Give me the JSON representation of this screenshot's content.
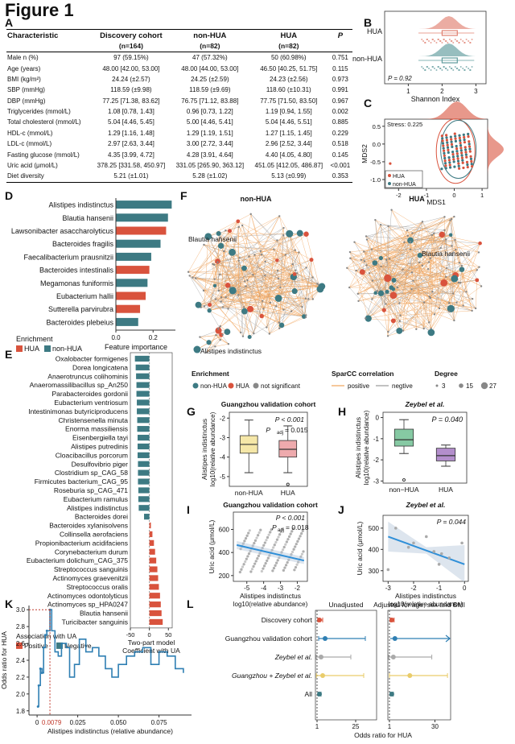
{
  "figure_title": "Figure 1",
  "panel_labels": [
    "A",
    "B",
    "C",
    "D",
    "E",
    "F",
    "G",
    "H",
    "I",
    "J",
    "K",
    "L"
  ],
  "table_a": {
    "headers": [
      "Characteristic",
      "Discovery cohort",
      "non-HUA",
      "HUA",
      "P"
    ],
    "subheaders": [
      "",
      "(n=164)",
      "(n=82)",
      "(n=82)",
      ""
    ],
    "rows": [
      [
        "Male n (%)",
        "97 (59.15%)",
        "47 (57.32%)",
        "50 (60.98%)",
        "0.751"
      ],
      [
        "Age (years)",
        "48.00 [42.00, 53.00]",
        "48.00 [44.00, 53.00]",
        "46.50 [40.25, 51.75]",
        "0.115"
      ],
      [
        "BMI (kg/m²)",
        "24.24 (±2.57)",
        "24.25 (±2.59)",
        "24.23 (±2.56)",
        "0.973"
      ],
      [
        "SBP (mmHg)",
        "118.59 (±9.98)",
        "118.59 (±9.69)",
        "118.60 (±10.31)",
        "0.991"
      ],
      [
        "DBP (mmHg)",
        "77.25 [71.38, 83.62]",
        "76.75 [71.12, 83.88]",
        "77.75 [71.50, 83.50]",
        "0.967"
      ],
      [
        "Triglycerides (mmol/L)",
        "1.08 [0.78, 1.43]",
        "0.96 [0.73, 1.22]",
        "1.19 [0.94, 1.55]",
        "0.002"
      ],
      [
        "Total cholesterol (mmol/L)",
        "5.04 [4.46, 5.45]",
        "5.00 [4.46, 5.41]",
        "5.04 [4.46, 5.51]",
        "0.885"
      ],
      [
        "HDL-c (mmol/L)",
        "1.29 [1.16, 1.48]",
        "1.29 [1.19, 1.51]",
        "1.27 [1.15, 1.45]",
        "0.229"
      ],
      [
        "LDL-c (mmol/L)",
        "2.97 [2.63, 3.44]",
        "3.00 [2.72, 3.44]",
        "2.96 [2.52, 3.44]",
        "0.518"
      ],
      [
        "Fasting glucose (mmol/L)",
        "4.35 [3.99, 4.72]",
        "4.28 [3.91, 4.64]",
        "4.40 [4.05, 4.80]",
        "0.145"
      ],
      [
        "Uric acid (μmol/L)",
        "378.25 [331.58, 450.97]",
        "331.05 [265.90, 363.12]",
        "451.05 [412.05, 486.87]",
        "<0.001"
      ],
      [
        "Diet diversity",
        "5.21 (±1.01)",
        "5.28 (±1.02)",
        "5.13 (±0.99)",
        "0.353"
      ]
    ]
  },
  "panel_b": {
    "groups": [
      "HUA",
      "non-HUA"
    ],
    "xlabel": "Shannon Index",
    "xticks": [
      "1",
      "2",
      "3"
    ],
    "p_text": "P = 0.92"
  },
  "panel_c": {
    "stress": "Stress: 0.225",
    "xlabel": "MDS1",
    "ylabel": "MDS2",
    "xticks": [
      "-2",
      "-1",
      "0",
      "1"
    ],
    "yticks": [
      "0.5",
      "0.0",
      "-0.5",
      "-1.0"
    ],
    "legend": [
      "HUA",
      "non-HUA"
    ]
  },
  "panel_d": {
    "xlabel": "Feature importance",
    "xticks": [
      "0.0",
      "0.2"
    ],
    "legend_title": "Enrichment",
    "legend": [
      "HUA",
      "non-HUA"
    ]
  },
  "panel_e": {
    "xlabel1": "Two-part model",
    "xlabel2": "Coefficient with UA",
    "xticks": [
      "-50",
      "0",
      "50"
    ],
    "legend_title": "Association with UA",
    "legend": [
      "Positive",
      "Negative"
    ]
  },
  "panel_f": {
    "left_title": "non-HUA",
    "right_title": "HUA",
    "labels": {
      "left_top": "Blautia hansenii",
      "left_bottom": "Alistipes indistinctus",
      "right": "Blautia hansenii"
    },
    "legend": {
      "enrichment_title": "Enrichment",
      "enrichment": [
        "non-HUA",
        "HUA",
        "not significant"
      ],
      "sparcc_title": "SparCC correlation",
      "sparcc": [
        "positive",
        "negtive"
      ],
      "degree_title": "Degree",
      "degree": [
        "3",
        "15",
        "27"
      ]
    }
  },
  "panel_g": {
    "title": "Guangzhou validation cohort",
    "p_text": "P < 0.001",
    "padj_text": "= 0.015",
    "groups": [
      "non-HUA",
      "HUA"
    ],
    "yticks": [
      "-2",
      "-3",
      "-4",
      "-5"
    ],
    "ylabel1": "Alistipes indistinctus",
    "ylabel2": "log10(relative abundance)"
  },
  "panel_h": {
    "title": "Zeybel et al.",
    "p_text": "P = 0.040",
    "groups": [
      "non−HUA",
      "HUA"
    ],
    "yticks": [
      "0",
      "-1",
      "-2",
      "-3"
    ],
    "ylabel1": "Alistipes indistinctus",
    "ylabel2": "log10(relative abundance)"
  },
  "panel_i": {
    "title": "Guangzhou validation cohort",
    "p_text": "P < 0.001",
    "padj_text": "= 0.018",
    "xticks": [
      "-5",
      "-4",
      "-3",
      "-2"
    ],
    "yticks": [
      "200",
      "400",
      "600"
    ],
    "ylabel": "Uric acid (μmol/L)",
    "xlabel1": "Alistipes indistinctus",
    "xlabel2": "log10(relative abundance)"
  },
  "panel_j": {
    "title": "Zeybel et al.",
    "p_text": "P = 0.044",
    "xticks": [
      "-3",
      "-2",
      "-1",
      "0"
    ],
    "yticks": [
      "300",
      "400",
      "500"
    ],
    "ylabel": "Uric acid (μmol/L)",
    "xlabel1": "Alistipes indistinctus",
    "xlabel2": "log10(relative abundance)"
  },
  "panel_k": {
    "ylabel": "Odds ratio for HUA",
    "xlabel": "Alistipes indistinctus (relative abundance)",
    "xticks": [
      "0",
      "0.025",
      "0.050",
      "0.075"
    ],
    "yticks": [
      "3.0",
      "2.8",
      "2.6",
      "2.4",
      "2.2",
      "2.0",
      "1.8"
    ],
    "threshold": "0.0079"
  },
  "panel_l": {
    "title_left": "Unadjusted",
    "title_right": "Adjusted for age, sex and BMI",
    "xlabel": "Odds ratio for HUA",
    "xticks_left": [
      "1",
      "25"
    ],
    "xticks_right": [
      "1",
      "30"
    ]
  },
  "chart_data": [
    {
      "panel": "D",
      "type": "bar",
      "title": "",
      "xlabel": "Feature importance",
      "categories": [
        "Alistipes indistinctus",
        "Blautia hansenii",
        "Lawsonibacter asaccharolyticus",
        "Bacteroides fragilis",
        "Faecalibacterium prausnitzii",
        "Bacteroides intestinalis",
        "Megamonas funiformis",
        "Eubacterium hallii",
        "Sutterella parvirubra",
        "Bacteroides plebeius"
      ],
      "values": [
        0.3,
        0.28,
        0.27,
        0.24,
        0.19,
        0.18,
        0.17,
        0.16,
        0.13,
        0.12
      ],
      "enrichment": [
        "non-HUA",
        "non-HUA",
        "HUA",
        "non-HUA",
        "non-HUA",
        "HUA",
        "non-HUA",
        "HUA",
        "HUA",
        "non-HUA"
      ],
      "xlim": [
        0,
        0.32
      ],
      "colors": {
        "HUA": "#d9533d",
        "non-HUA": "#3d7a83"
      }
    },
    {
      "panel": "E",
      "type": "bar",
      "xlabel": "Two-part model Coefficient with UA",
      "categories": [
        "Oxalobacter formigenes",
        "Dorea longicatena",
        "Anaerotruncus colihominis",
        "Anaeromassilibacillus sp_An250",
        "Parabacteroides gordonii",
        "Eubacterium ventriosum",
        "Intestinimonas butyriciproducens",
        "Christensenella minuta",
        "Enorma massiliensis",
        "Eisenbergiella tayi",
        "Alistipes putredinis",
        "Cloacibacillus porcorum",
        "Desulfovibrio piger",
        "Clostridium sp_CAG_58",
        "Firmicutes bacterium_CAG_95",
        "Roseburia sp_CAG_471",
        "Eubacterium ramulus",
        "Alistipes indistinctus",
        "Bacteroides dorei",
        "Bacteroides xylanisolvens",
        "Collinsella aerofaciens",
        "Propionibacterium acidifaciens",
        "Corynebacterium durum",
        "Eubacterium dolichum_CAG_375",
        "Streptococcus sanguinis",
        "Actinomyces graevenitzii",
        "Streptococcus oralis",
        "Actinomyces odontolyticus",
        "Actinomyces sp_HPA0247",
        "Blautia hansenii",
        "Turicibacter sanguinis"
      ],
      "values": [
        -38,
        -36,
        -35,
        -34,
        -34,
        -33,
        -33,
        -32,
        -32,
        -31,
        -31,
        -31,
        -30,
        -30,
        -30,
        -29,
        -29,
        -28,
        -14,
        4,
        8,
        12,
        15,
        18,
        21,
        23,
        25,
        28,
        30,
        32,
        35
      ],
      "xlim": [
        -50,
        60
      ]
    },
    {
      "panel": "G",
      "type": "box",
      "title": "Guangzhou validation cohort",
      "categories": [
        "non-HUA",
        "HUA"
      ],
      "series": [
        {
          "name": "non-HUA",
          "min": -4.8,
          "q1": -3.8,
          "median": -3.35,
          "q3": -2.9,
          "max": -2.1
        },
        {
          "name": "HUA",
          "min": -4.8,
          "q1": -4.0,
          "median": -3.6,
          "q3": -3.15,
          "max": -2.4
        }
      ],
      "outliers": {
        "HUA": [
          -5.4
        ]
      },
      "ylim": [
        -5.5,
        -1.7
      ]
    },
    {
      "panel": "H",
      "type": "box",
      "title": "Zeybel et al.",
      "categories": [
        "non−HUA",
        "HUA"
      ],
      "series": [
        {
          "name": "non−HUA",
          "min": -1.7,
          "q1": -1.35,
          "median": -1.05,
          "q3": -0.55,
          "max": -0.1
        },
        {
          "name": "HUA",
          "min": -2.3,
          "q1": -2.05,
          "median": -1.8,
          "q3": -1.45,
          "max": -1.3
        }
      ],
      "outliers": {
        "non−HUA": [
          -2.95
        ]
      },
      "ylim": [
        -3.1,
        0.25
      ]
    },
    {
      "panel": "I",
      "type": "scatter",
      "title": "Guangzhou validation cohort",
      "xlim": [
        -5.8,
        -1.4
      ],
      "ylim": [
        150,
        750
      ],
      "fit": {
        "x": [
          -5.6,
          -1.6
        ],
        "y": [
          465,
          330
        ]
      }
    },
    {
      "panel": "J",
      "type": "scatter",
      "title": "Zeybel et al.",
      "xlim": [
        -3.2,
        0.15
      ],
      "x": [
        -3.0,
        -2.7,
        -2.2,
        -2.0,
        -1.5,
        -1.2,
        -1.0,
        -0.9,
        -0.6,
        -0.1
      ],
      "y": [
        305,
        500,
        410,
        430,
        460,
        390,
        330,
        380,
        360,
        430
      ],
      "fit": {
        "x": [
          -3.0,
          0.0
        ],
        "y": [
          460,
          330
        ]
      },
      "ylim": [
        250,
        560
      ]
    },
    {
      "panel": "K",
      "type": "line",
      "xlabel": "Alistipes indistinctus (relative abundance)",
      "ylabel": "Odds ratio for HUA",
      "x": [
        0.0005,
        0.001,
        0.002,
        0.003,
        0.004,
        0.005,
        0.006,
        0.0079,
        0.009,
        0.011,
        0.013,
        0.015,
        0.018,
        0.02,
        0.023,
        0.026,
        0.03,
        0.034,
        0.038,
        0.042,
        0.046,
        0.05,
        0.055,
        0.06,
        0.065,
        0.07,
        0.075,
        0.08,
        0.085,
        0.09
      ],
      "y": [
        1.85,
        2.1,
        2.3,
        2.25,
        2.55,
        2.7,
        2.75,
        3.0,
        2.75,
        2.5,
        2.45,
        2.6,
        2.55,
        2.2,
        2.35,
        2.65,
        2.5,
        2.55,
        2.45,
        2.3,
        2.2,
        2.35,
        2.45,
        2.5,
        2.55,
        2.35,
        2.5,
        2.45,
        2.3,
        2.25
      ],
      "xlim": [
        -0.005,
        0.095
      ],
      "ylim": [
        1.75,
        3.05
      ],
      "threshold": 0.0079
    },
    {
      "panel": "L",
      "type": "forest",
      "categories": [
        "Discovery cohort",
        "Guangzhou validation cohort",
        "Zeybel et al.",
        "Guangzhou + Zeybel et al.",
        "All"
      ],
      "colors": [
        "#d9533d",
        "#2f7fb3",
        "#aaaaaa",
        "#e9cc6a",
        "#3d7a83"
      ],
      "unadjusted": [
        {
          "or": 2.5,
          "lo": 1.5,
          "hi": 4.5
        },
        {
          "or": 6,
          "lo": 2,
          "hi": 31
        },
        {
          "or": 3.5,
          "lo": 0.5,
          "hi": 22
        },
        {
          "or": 4.5,
          "lo": 0.6,
          "hi": 30
        },
        {
          "or": 2.5,
          "lo": 1.6,
          "hi": 3.5
        }
      ],
      "adjusted": [
        {
          "or": 2.5,
          "lo": 1.5,
          "hi": 4
        },
        {
          "or": 4.5,
          "lo": 1.5,
          "hi": 40
        },
        {
          "or": 3.5,
          "lo": 0.5,
          "hi": 28
        },
        {
          "or": 14,
          "lo": 1,
          "hi": 38
        },
        {
          "or": 2.5,
          "lo": 1.5,
          "hi": 3.5
        }
      ],
      "xlim_left": [
        0,
        38
      ],
      "xlim_right": [
        0,
        40
      ]
    }
  ]
}
